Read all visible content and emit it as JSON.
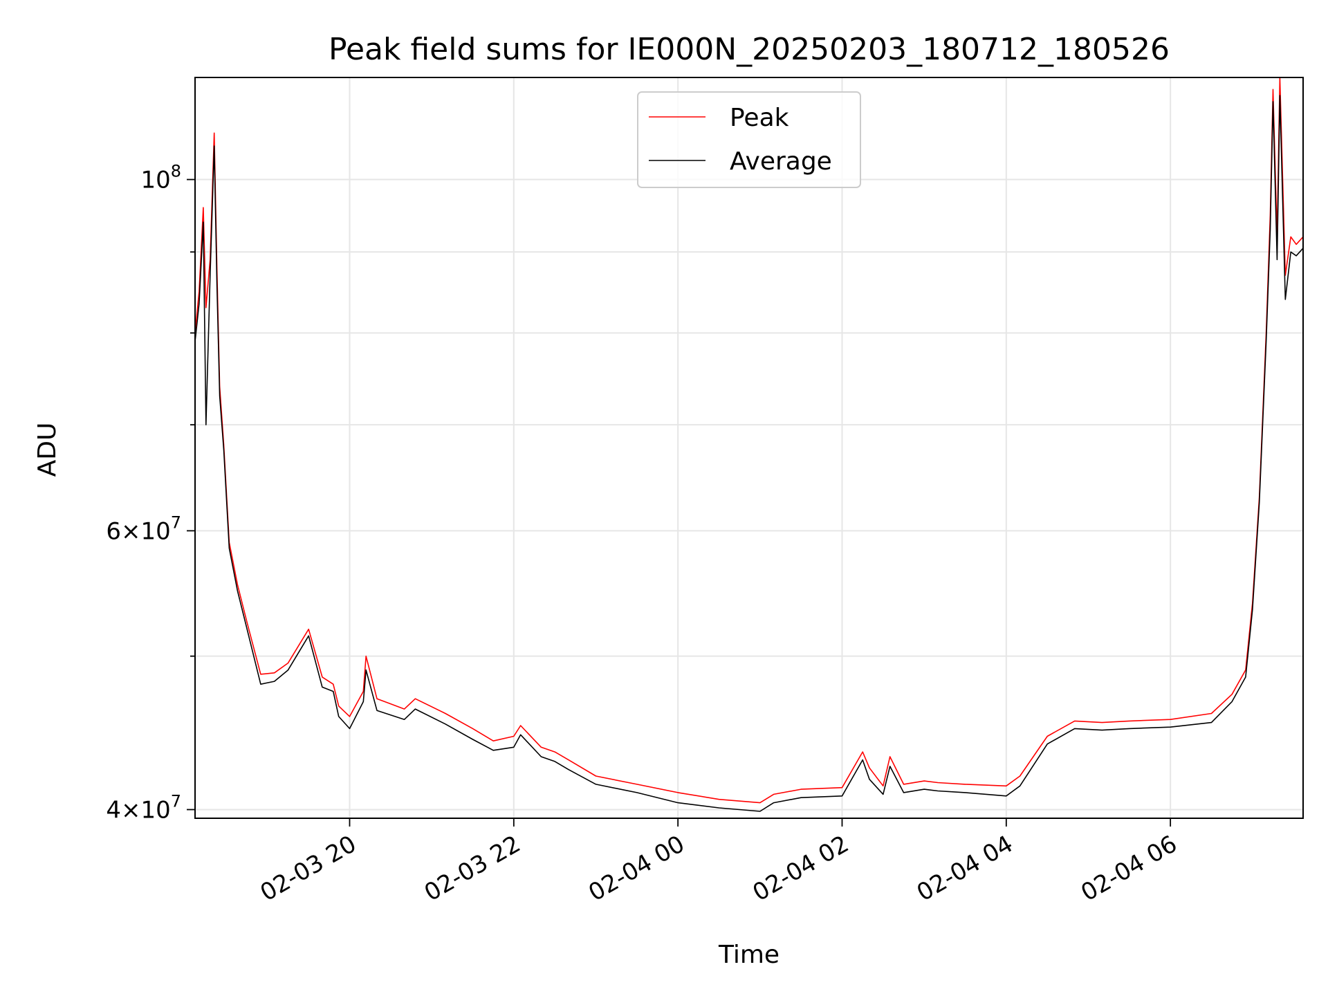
{
  "chart_data": {
    "type": "line",
    "title": "Peak field sums for IE000N_20250203_180712_180526",
    "xlabel": "Time",
    "ylabel": "ADU",
    "x_range": [
      "2025-02-03 18:07",
      "2025-02-04 07:37"
    ],
    "y_scale": "log",
    "ylim": [
      39500000,
      116000000
    ],
    "grid": true,
    "legend_position": "upper center",
    "x_ticks": [
      {
        "value": "2025-02-03 20:00",
        "label": "02-03 20"
      },
      {
        "value": "2025-02-03 22:00",
        "label": "02-03 22"
      },
      {
        "value": "2025-02-04 00:00",
        "label": "02-04 00"
      },
      {
        "value": "2025-02-04 02:00",
        "label": "02-04 02"
      },
      {
        "value": "2025-02-04 04:00",
        "label": "02-04 04"
      },
      {
        "value": "2025-02-04 06:00",
        "label": "02-04 06"
      }
    ],
    "y_ticks": [
      {
        "value": 40000000,
        "mantissa": "4",
        "exponent": "7"
      },
      {
        "value": 60000000,
        "mantissa": "6",
        "exponent": "7"
      },
      {
        "value": 100000000,
        "mantissa": "",
        "exponent": "8"
      }
    ],
    "y_minor_ticks": [
      50000000,
      70000000,
      80000000,
      90000000
    ],
    "series": [
      {
        "name": "Peak",
        "color": "#ff0000",
        "x": [
          "2025-02-03 18:07",
          "2025-02-03 18:10",
          "2025-02-03 18:13",
          "2025-02-03 18:15",
          "2025-02-03 18:18",
          "2025-02-03 18:21",
          "2025-02-03 18:23",
          "2025-02-03 18:25",
          "2025-02-03 18:28",
          "2025-02-03 18:32",
          "2025-02-03 18:38",
          "2025-02-03 18:45",
          "2025-02-03 18:55",
          "2025-02-03 19:05",
          "2025-02-03 19:15",
          "2025-02-03 19:30",
          "2025-02-03 19:40",
          "2025-02-03 19:48",
          "2025-02-03 19:52",
          "2025-02-03 20:00",
          "2025-02-03 20:10",
          "2025-02-03 20:12",
          "2025-02-03 20:20",
          "2025-02-03 20:40",
          "2025-02-03 20:48",
          "2025-02-03 21:10",
          "2025-02-03 21:30",
          "2025-02-03 21:45",
          "2025-02-03 22:00",
          "2025-02-03 22:05",
          "2025-02-03 22:20",
          "2025-02-03 22:30",
          "2025-02-03 22:40",
          "2025-02-03 23:00",
          "2025-02-03 23:30",
          "2025-02-04 00:00",
          "2025-02-04 00:30",
          "2025-02-04 01:00",
          "2025-02-04 01:10",
          "2025-02-04 01:30",
          "2025-02-04 02:00",
          "2025-02-04 02:15",
          "2025-02-04 02:20",
          "2025-02-04 02:30",
          "2025-02-04 02:35",
          "2025-02-04 02:45",
          "2025-02-04 03:00",
          "2025-02-04 03:10",
          "2025-02-04 03:30",
          "2025-02-04 04:00",
          "2025-02-04 04:10",
          "2025-02-04 04:30",
          "2025-02-04 04:50",
          "2025-02-04 05:10",
          "2025-02-04 05:30",
          "2025-02-04 06:00",
          "2025-02-04 06:30",
          "2025-02-04 06:45",
          "2025-02-04 06:55",
          "2025-02-04 07:00",
          "2025-02-04 07:05",
          "2025-02-04 07:10",
          "2025-02-04 07:13",
          "2025-02-04 07:15",
          "2025-02-04 07:18",
          "2025-02-04 07:20",
          "2025-02-04 07:24",
          "2025-02-04 07:28",
          "2025-02-04 07:32",
          "2025-02-04 07:37"
        ],
        "y": [
          80000000,
          85000000,
          96000000,
          83000000,
          89000000,
          107000000,
          88000000,
          74000000,
          68000000,
          59000000,
          55500000,
          52500000,
          48700000,
          48800000,
          49500000,
          52000000,
          48500000,
          48000000,
          46500000,
          45800000,
          47500000,
          50000000,
          47000000,
          46300000,
          47000000,
          46000000,
          45000000,
          44200000,
          44500000,
          45200000,
          43800000,
          43500000,
          43000000,
          42000000,
          41500000,
          41000000,
          40600000,
          40400000,
          40900000,
          41200000,
          41300000,
          43500000,
          42500000,
          41400000,
          43200000,
          41500000,
          41700000,
          41600000,
          41500000,
          41400000,
          42000000,
          44500000,
          45500000,
          45400000,
          45500000,
          45600000,
          46000000,
          47300000,
          49000000,
          54000000,
          63000000,
          80000000,
          95000000,
          114000000,
          92000000,
          116000000,
          87000000,
          92000000,
          91000000,
          92000000
        ]
      },
      {
        "name": "Average",
        "color": "#000000",
        "x": [
          "2025-02-03 18:07",
          "2025-02-03 18:10",
          "2025-02-03 18:13",
          "2025-02-03 18:15",
          "2025-02-03 18:18",
          "2025-02-03 18:21",
          "2025-02-03 18:23",
          "2025-02-03 18:25",
          "2025-02-03 18:28",
          "2025-02-03 18:32",
          "2025-02-03 18:38",
          "2025-02-03 18:45",
          "2025-02-03 18:55",
          "2025-02-03 19:05",
          "2025-02-03 19:15",
          "2025-02-03 19:30",
          "2025-02-03 19:40",
          "2025-02-03 19:48",
          "2025-02-03 19:52",
          "2025-02-03 20:00",
          "2025-02-03 20:10",
          "2025-02-03 20:12",
          "2025-02-03 20:20",
          "2025-02-03 20:40",
          "2025-02-03 20:48",
          "2025-02-03 21:10",
          "2025-02-03 21:30",
          "2025-02-03 21:45",
          "2025-02-03 22:00",
          "2025-02-03 22:05",
          "2025-02-03 22:20",
          "2025-02-03 22:30",
          "2025-02-03 22:40",
          "2025-02-03 23:00",
          "2025-02-03 23:30",
          "2025-02-04 00:00",
          "2025-02-04 00:30",
          "2025-02-04 01:00",
          "2025-02-04 01:10",
          "2025-02-04 01:30",
          "2025-02-04 02:00",
          "2025-02-04 02:15",
          "2025-02-04 02:20",
          "2025-02-04 02:30",
          "2025-02-04 02:35",
          "2025-02-04 02:45",
          "2025-02-04 03:00",
          "2025-02-04 03:10",
          "2025-02-04 03:30",
          "2025-02-04 04:00",
          "2025-02-04 04:10",
          "2025-02-04 04:30",
          "2025-02-04 04:50",
          "2025-02-04 05:10",
          "2025-02-04 05:30",
          "2025-02-04 06:00",
          "2025-02-04 06:30",
          "2025-02-04 06:45",
          "2025-02-04 06:55",
          "2025-02-04 07:00",
          "2025-02-04 07:05",
          "2025-02-04 07:10",
          "2025-02-04 07:13",
          "2025-02-04 07:15",
          "2025-02-04 07:18",
          "2025-02-04 07:20",
          "2025-02-04 07:24",
          "2025-02-04 07:28",
          "2025-02-04 07:32",
          "2025-02-04 07:37"
        ],
        "y": [
          79000000,
          83500000,
          94000000,
          70000000,
          87000000,
          105000000,
          86000000,
          73000000,
          67500000,
          58500000,
          55000000,
          52000000,
          48000000,
          48200000,
          49000000,
          51500000,
          47800000,
          47500000,
          45800000,
          45000000,
          46800000,
          49000000,
          46200000,
          45600000,
          46300000,
          45300000,
          44300000,
          43600000,
          43800000,
          44600000,
          43200000,
          42900000,
          42400000,
          41500000,
          41000000,
          40400000,
          40100000,
          39900000,
          40400000,
          40700000,
          40800000,
          43000000,
          41800000,
          40900000,
          42600000,
          41000000,
          41200000,
          41100000,
          41000000,
          40800000,
          41400000,
          44000000,
          45000000,
          44900000,
          45000000,
          45100000,
          45400000,
          46800000,
          48500000,
          53500000,
          62500000,
          79000000,
          93000000,
          112000000,
          89000000,
          113000000,
          84000000,
          90000000,
          89500000,
          90500000
        ]
      }
    ]
  }
}
